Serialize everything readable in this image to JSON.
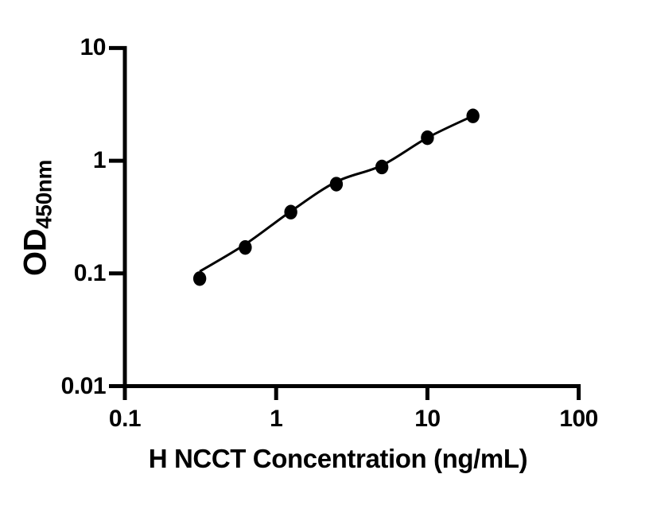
{
  "figure": {
    "background": "#ffffff",
    "ink_color": "#000000"
  },
  "chart_data": {
    "type": "scatter",
    "title": "",
    "xlabel": "H NCCT Concentration (ng/mL)",
    "ylabel_main": "OD",
    "ylabel_subscript": "450nm",
    "x_scale": "log",
    "y_scale": "log",
    "xlim": [
      0.1,
      100
    ],
    "ylim": [
      0.01,
      10
    ],
    "grid": false,
    "legend": "none",
    "x_ticks": [
      {
        "value": 0.1,
        "label": "0.1"
      },
      {
        "value": 1,
        "label": "1"
      },
      {
        "value": 10,
        "label": "10"
      },
      {
        "value": 100,
        "label": "100"
      }
    ],
    "y_ticks": [
      {
        "value": 0.01,
        "label": "0.01"
      },
      {
        "value": 0.1,
        "label": "0.1"
      },
      {
        "value": 1,
        "label": "1"
      },
      {
        "value": 10,
        "label": "10"
      }
    ],
    "series": [
      {
        "marker": "filled-circle",
        "color": "#000000",
        "fit_curve": true,
        "points": [
          {
            "x": 0.3125,
            "y": 0.09
          },
          {
            "x": 0.625,
            "y": 0.17
          },
          {
            "x": 1.25,
            "y": 0.35
          },
          {
            "x": 2.5,
            "y": 0.62
          },
          {
            "x": 5,
            "y": 0.88
          },
          {
            "x": 10,
            "y": 1.6
          },
          {
            "x": 20,
            "y": 2.5
          }
        ]
      }
    ]
  }
}
